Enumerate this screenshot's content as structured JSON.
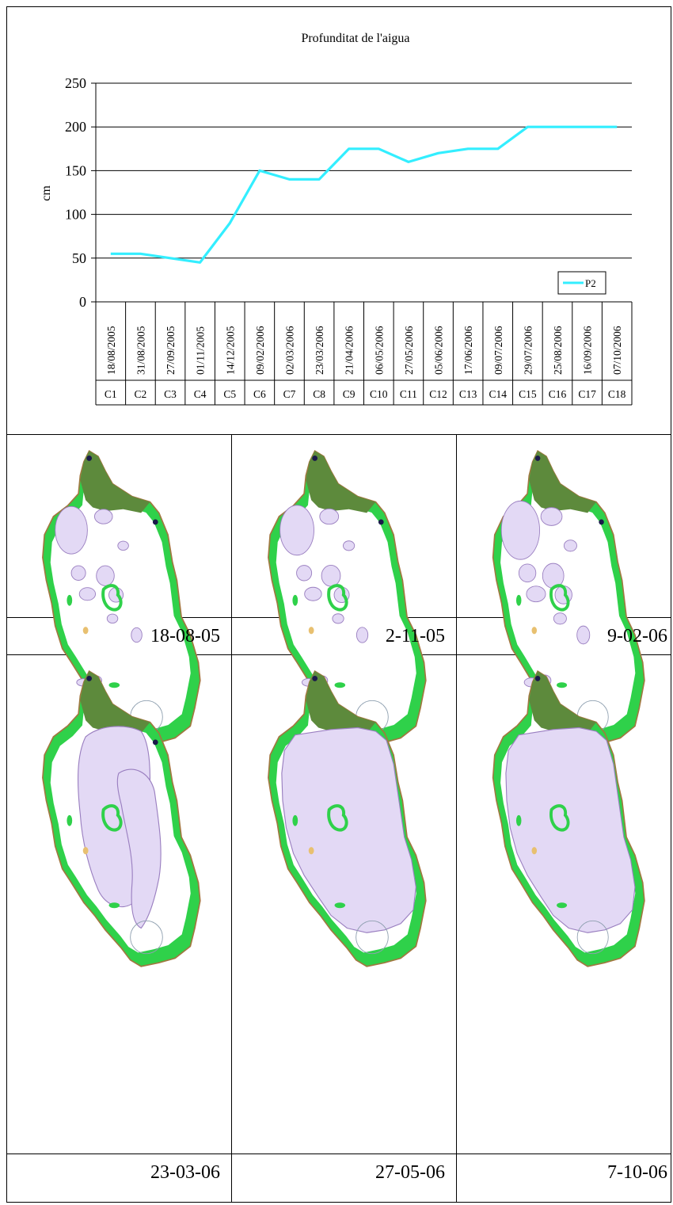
{
  "chart_data": {
    "type": "line",
    "title": "Profunditat de l'aigua",
    "ylabel": "cm",
    "ylim": [
      0,
      250
    ],
    "yticks": [
      0,
      50,
      100,
      150,
      200,
      250
    ],
    "grid": true,
    "legend": "bottom-right",
    "dates": [
      "18/08/2005",
      "31/08/2005",
      "27/09/2005",
      "01/11/2005",
      "14/12/2005",
      "09/02/2006",
      "02/03/2006",
      "23/03/2006",
      "21/04/2006",
      "06/05/2006",
      "27/05/2006",
      "05/06/2006",
      "17/06/2006",
      "09/07/2006",
      "29/07/2006",
      "25/08/2006",
      "16/09/2006",
      "07/10/2006"
    ],
    "campaigns": [
      "C1",
      "C2",
      "C3",
      "C4",
      "C5",
      "C6",
      "C7",
      "C8",
      "C9",
      "C10",
      "C11",
      "C12",
      "C13",
      "C14",
      "C15",
      "C16",
      "C17",
      "C18"
    ],
    "series": [
      {
        "name": "P2",
        "color": "#33eeff",
        "values": [
          55,
          55,
          50,
          45,
          90,
          150,
          140,
          140,
          175,
          175,
          160,
          170,
          175,
          175,
          200,
          200,
          200,
          200
        ]
      }
    ]
  },
  "panels": [
    {
      "caption": "18-08-05",
      "water_extent": 0.12
    },
    {
      "caption": "2-11-05",
      "water_extent": 0.15
    },
    {
      "caption": "9-02-06",
      "water_extent": 0.25
    },
    {
      "caption": "23-03-06",
      "water_extent": 0.55
    },
    {
      "caption": "27-05-06",
      "water_extent": 0.85
    },
    {
      "caption": "7-10-06",
      "water_extent": 1.0
    }
  ],
  "colors": {
    "water": "#e3d9f5",
    "water_edge": "#9a7fc0",
    "reed": "#2fd14a",
    "woodland": "#5d8a3c",
    "shore": "#a07840",
    "dark_spot": "#1a1a4a"
  }
}
